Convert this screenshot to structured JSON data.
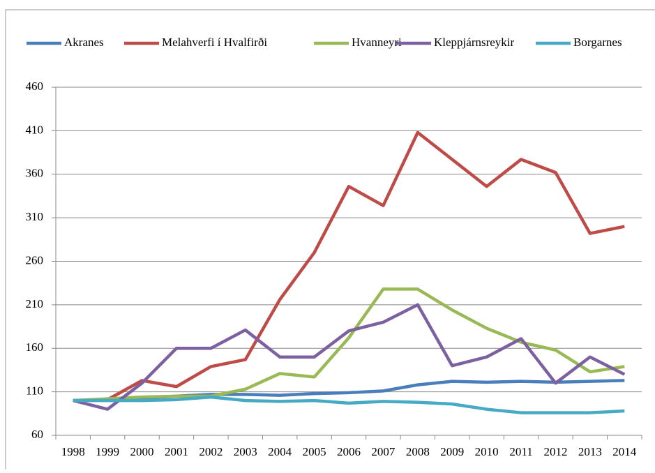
{
  "chart_data": {
    "type": "line",
    "categories": [
      "1998",
      "1999",
      "2000",
      "2001",
      "2002",
      "2003",
      "2004",
      "2005",
      "2006",
      "2007",
      "2008",
      "2009",
      "2010",
      "2011",
      "2012",
      "2013",
      "2014"
    ],
    "series": [
      {
        "name": "Akranes",
        "color": "#4a7ebb",
        "values": [
          100,
          101,
          103,
          105,
          107,
          107,
          106,
          108,
          109,
          111,
          118,
          122,
          121,
          122,
          121,
          122,
          123
        ]
      },
      {
        "name": "Melahverfi í Hvalfirði",
        "color": "#be4b48",
        "values": [
          100,
          101,
          123,
          116,
          139,
          147,
          216,
          270,
          346,
          324,
          408,
          377,
          346,
          377,
          362,
          292,
          300
        ]
      },
      {
        "name": "Hvanneyri",
        "color": "#98b954",
        "values": [
          100,
          102,
          104,
          105,
          105,
          113,
          131,
          127,
          172,
          228,
          228,
          204,
          183,
          167,
          158,
          133,
          139
        ]
      },
      {
        "name": "Kleppjárnsreykir",
        "color": "#7d60a0",
        "values": [
          100,
          90,
          120,
          160,
          160,
          181,
          150,
          150,
          180,
          190,
          210,
          140,
          150,
          171,
          120,
          150,
          130
        ]
      },
      {
        "name": "Borgarnes",
        "color": "#46aac5",
        "values": [
          100,
          100,
          100,
          101,
          104,
          100,
          99,
          100,
          97,
          99,
          98,
          96,
          90,
          86,
          86,
          86,
          88
        ]
      }
    ],
    "ylim": [
      60,
      460
    ],
    "yticks": [
      60,
      110,
      160,
      210,
      260,
      310,
      360,
      410,
      460
    ],
    "grid": true,
    "legend": "top"
  }
}
